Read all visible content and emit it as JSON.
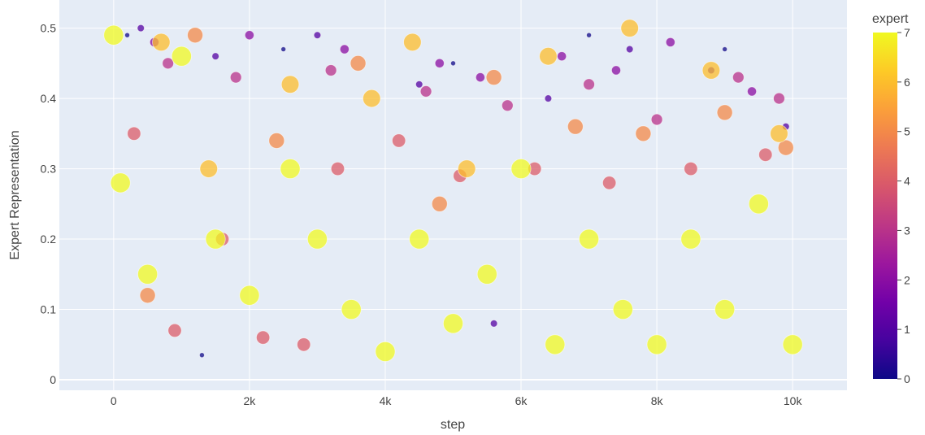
{
  "chart_data": {
    "type": "scatter",
    "title": "",
    "xlabel": "step",
    "ylabel": "Expert Representation",
    "xlim": [
      -800,
      10800
    ],
    "ylim": [
      -0.015,
      0.54
    ],
    "x_ticks": [
      {
        "value": 0,
        "label": "0"
      },
      {
        "value": 2000,
        "label": "2k"
      },
      {
        "value": 4000,
        "label": "4k"
      },
      {
        "value": 6000,
        "label": "6k"
      },
      {
        "value": 8000,
        "label": "8k"
      },
      {
        "value": 10000,
        "label": "10k"
      }
    ],
    "y_ticks": [
      {
        "value": 0,
        "label": "0"
      },
      {
        "value": 0.1,
        "label": "0.1"
      },
      {
        "value": 0.2,
        "label": "0.2"
      },
      {
        "value": 0.3,
        "label": "0.3"
      },
      {
        "value": 0.4,
        "label": "0.4"
      },
      {
        "value": 0.5,
        "label": "0.5"
      }
    ],
    "grid": true,
    "colorbar": {
      "title": "expert",
      "min": 0,
      "max": 7,
      "ticks": [
        "0",
        "1",
        "2",
        "3",
        "4",
        "5",
        "6",
        "7"
      ],
      "colorscale": [
        "#0d0887",
        "#46039f",
        "#7201a8",
        "#9c179e",
        "#bd3786",
        "#d8576b",
        "#ed7953",
        "#fb9f3a",
        "#fdca26",
        "#f0f921"
      ]
    },
    "encoding": {
      "color": "expert",
      "size": "expert"
    },
    "series": [
      {
        "expert": 0,
        "points": [
          [
            200,
            0.49
          ],
          [
            1300,
            0.035
          ],
          [
            2500,
            0.47
          ],
          [
            5000,
            0.45
          ],
          [
            7000,
            0.49
          ],
          [
            9000,
            0.47
          ]
        ]
      },
      {
        "expert": 1,
        "points": [
          [
            400,
            0.5
          ],
          [
            1500,
            0.46
          ],
          [
            3000,
            0.49
          ],
          [
            4500,
            0.42
          ],
          [
            5600,
            0.08
          ],
          [
            6400,
            0.4
          ],
          [
            7600,
            0.47
          ],
          [
            8800,
            0.44
          ],
          [
            9900,
            0.36
          ]
        ]
      },
      {
        "expert": 2,
        "points": [
          [
            600,
            0.48
          ],
          [
            2000,
            0.49
          ],
          [
            3400,
            0.47
          ],
          [
            4800,
            0.45
          ],
          [
            5400,
            0.43
          ],
          [
            6600,
            0.46
          ],
          [
            7400,
            0.44
          ],
          [
            8200,
            0.48
          ],
          [
            9400,
            0.41
          ]
        ]
      },
      {
        "expert": 3,
        "points": [
          [
            800,
            0.45
          ],
          [
            1800,
            0.43
          ],
          [
            3200,
            0.44
          ],
          [
            4600,
            0.41
          ],
          [
            5800,
            0.39
          ],
          [
            7000,
            0.42
          ],
          [
            8000,
            0.37
          ],
          [
            9200,
            0.43
          ],
          [
            9800,
            0.4
          ]
        ]
      },
      {
        "expert": 4,
        "points": [
          [
            300,
            0.35
          ],
          [
            900,
            0.07
          ],
          [
            1600,
            0.2
          ],
          [
            2200,
            0.06
          ],
          [
            2800,
            0.05
          ],
          [
            3300,
            0.3
          ],
          [
            4200,
            0.34
          ],
          [
            5100,
            0.29
          ],
          [
            6200,
            0.3
          ],
          [
            7300,
            0.28
          ],
          [
            8500,
            0.3
          ],
          [
            9600,
            0.32
          ]
        ]
      },
      {
        "expert": 5,
        "points": [
          [
            500,
            0.12
          ],
          [
            1200,
            0.49
          ],
          [
            2400,
            0.34
          ],
          [
            3600,
            0.45
          ],
          [
            4800,
            0.25
          ],
          [
            5600,
            0.43
          ],
          [
            6800,
            0.36
          ],
          [
            7800,
            0.35
          ],
          [
            9000,
            0.38
          ],
          [
            9900,
            0.33
          ]
        ]
      },
      {
        "expert": 6,
        "points": [
          [
            700,
            0.48
          ],
          [
            1400,
            0.3
          ],
          [
            2600,
            0.42
          ],
          [
            3800,
            0.4
          ],
          [
            4400,
            0.48
          ],
          [
            5200,
            0.3
          ],
          [
            6400,
            0.46
          ],
          [
            7600,
            0.5
          ],
          [
            8800,
            0.44
          ],
          [
            9800,
            0.35
          ]
        ]
      },
      {
        "expert": 7,
        "points": [
          [
            0,
            0.49
          ],
          [
            100,
            0.28
          ],
          [
            500,
            0.15
          ],
          [
            1000,
            0.46
          ],
          [
            1500,
            0.2
          ],
          [
            2000,
            0.12
          ],
          [
            2600,
            0.3
          ],
          [
            3000,
            0.2
          ],
          [
            3500,
            0.1
          ],
          [
            4000,
            0.04
          ],
          [
            4500,
            0.2
          ],
          [
            5000,
            0.08
          ],
          [
            5500,
            0.15
          ],
          [
            6000,
            0.3
          ],
          [
            6500,
            0.05
          ],
          [
            7000,
            0.2
          ],
          [
            7500,
            0.1
          ],
          [
            8000,
            0.05
          ],
          [
            8500,
            0.2
          ],
          [
            9000,
            0.1
          ],
          [
            9500,
            0.25
          ],
          [
            10000,
            0.05
          ]
        ]
      }
    ]
  }
}
